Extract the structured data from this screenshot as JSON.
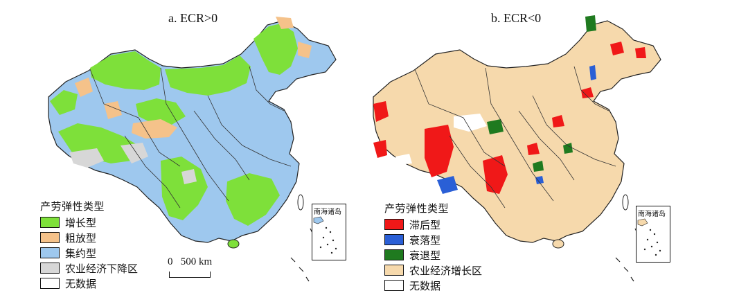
{
  "panels": [
    {
      "title": "a. ECR>0",
      "legend": {
        "title": "产劳弹性类型",
        "items": [
          {
            "label": "增长型",
            "color": "#7ee03a"
          },
          {
            "label": "粗放型",
            "color": "#f5c28a"
          },
          {
            "label": "集约型",
            "color": "#9ec8ee"
          },
          {
            "label": "农业经济下降区",
            "color": "#d7d7d7"
          },
          {
            "label": "无数据",
            "color": "#ffffff"
          }
        ]
      },
      "scale_bar": {
        "zero": "0",
        "distance": "500 km"
      },
      "inset_label": "南海诸岛"
    },
    {
      "title": "b. ECR<0",
      "legend": {
        "title": "产劳弹性类型",
        "items": [
          {
            "label": "滞后型",
            "color": "#f01818"
          },
          {
            "label": "衰落型",
            "color": "#2a5fd6"
          },
          {
            "label": "衰退型",
            "color": "#1f7a1f"
          },
          {
            "label": "农业经济增长区",
            "color": "#f6d9ac"
          },
          {
            "label": "无数据",
            "color": "#ffffff"
          }
        ]
      },
      "inset_label": "南海诸岛"
    }
  ]
}
